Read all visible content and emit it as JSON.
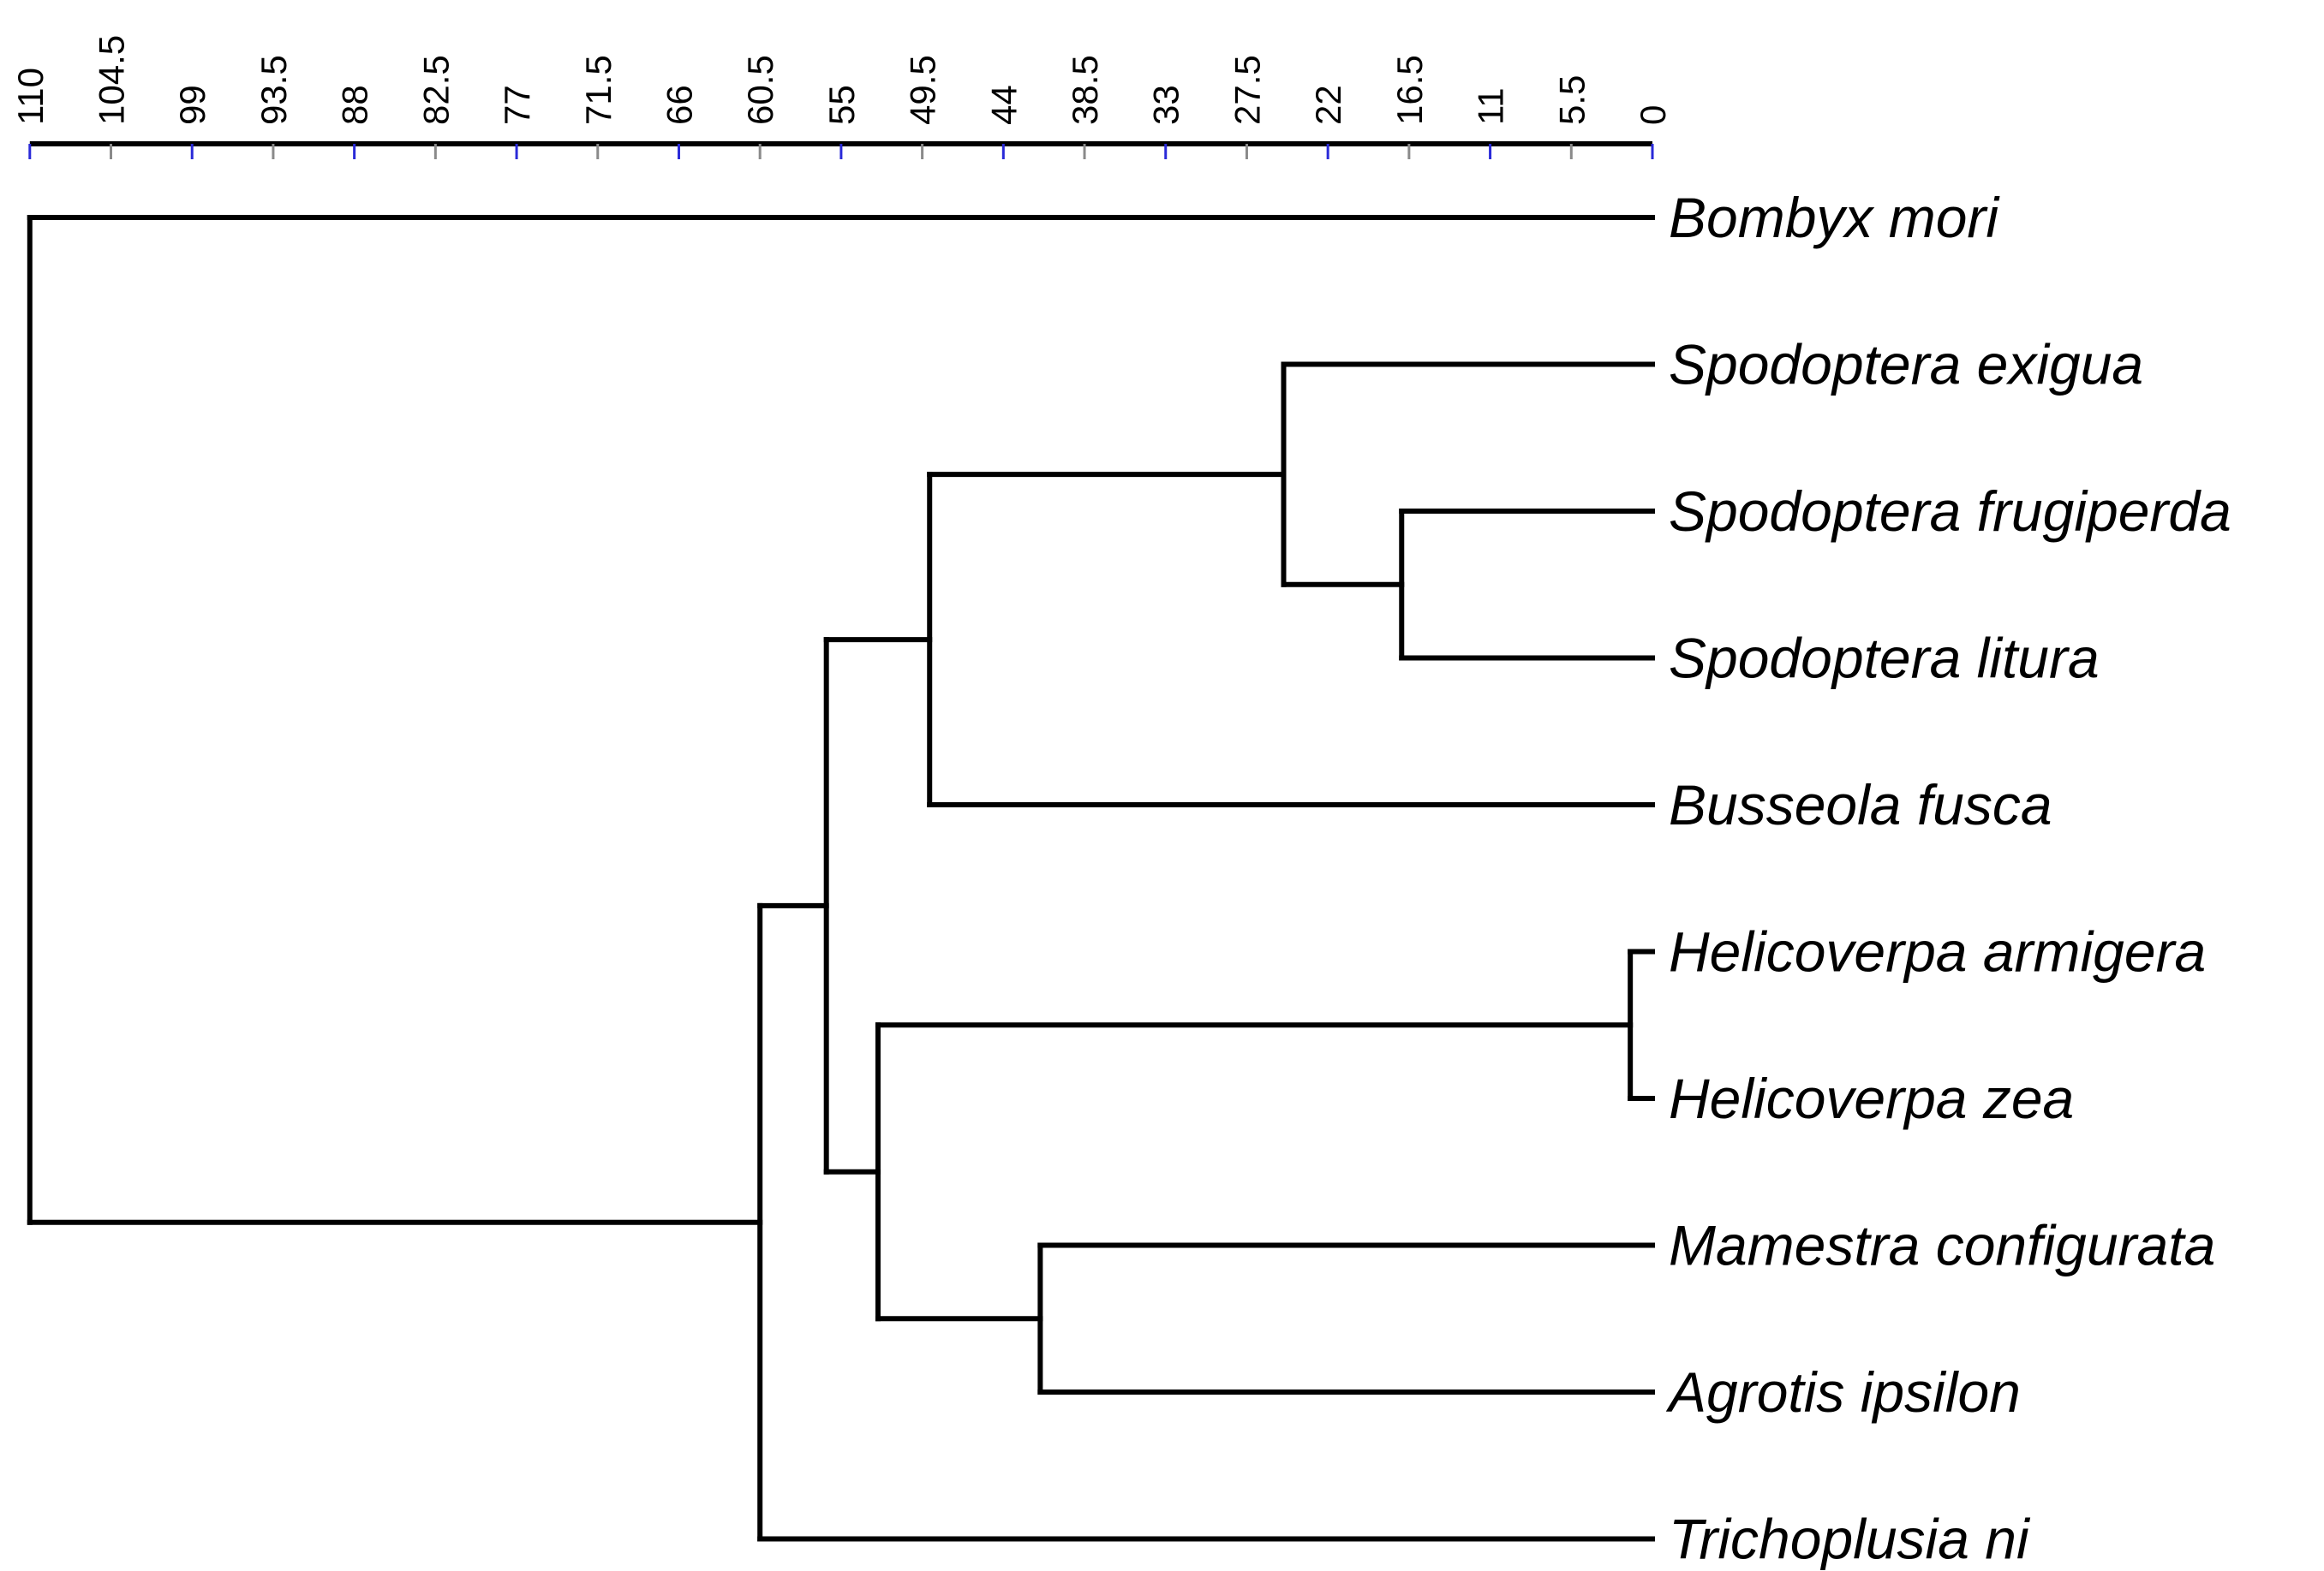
{
  "chart_data": {
    "type": "dendrogram",
    "orientation": "horizontal",
    "axis": {
      "range": [
        110,
        0
      ],
      "ticks": [
        "110",
        "104.5",
        "99",
        "93.5",
        "88",
        "82.5",
        "77",
        "71.5",
        "66",
        "60.5",
        "55",
        "49.5",
        "44",
        "38.5",
        "33",
        "27.5",
        "22",
        "16.5",
        "11",
        "5.5",
        "0"
      ]
    },
    "leaves": [
      "Bombyx mori",
      "Spodoptera exigua",
      "Spodoptera frugiperda",
      "Spodoptera litura",
      "Busseola fusca",
      "Helicoverpa armigera",
      "Helicoverpa zea",
      "Mamestra configurata",
      "Agrotis ipsilon",
      "Trichoplusia ni"
    ],
    "merges": [
      {
        "a": "Spodoptera frugiperda",
        "b": "Spodoptera litura",
        "height": 17
      },
      {
        "a": "Spodoptera exigua",
        "b": "N1",
        "height": 25
      },
      {
        "a": "N2",
        "b": "Busseola fusca",
        "height": 49
      },
      {
        "a": "Helicoverpa armigera",
        "b": "Helicoverpa zea",
        "height": 1.5
      },
      {
        "a": "Mamestra configurata",
        "b": "Agrotis ipsilon",
        "height": 41.5
      },
      {
        "a": "N4",
        "b": "N5",
        "height": 52.5
      },
      {
        "a": "N3",
        "b": "N6",
        "height": 56
      },
      {
        "a": "N7",
        "b": "Trichoplusia ni",
        "height": 60.5
      },
      {
        "a": "Bombyx mori",
        "b": "N8",
        "height": 110
      }
    ],
    "colors": {
      "line": "#000000",
      "major_tick": "#2a2ad8",
      "minor_tick": "#8a8a8a"
    }
  }
}
